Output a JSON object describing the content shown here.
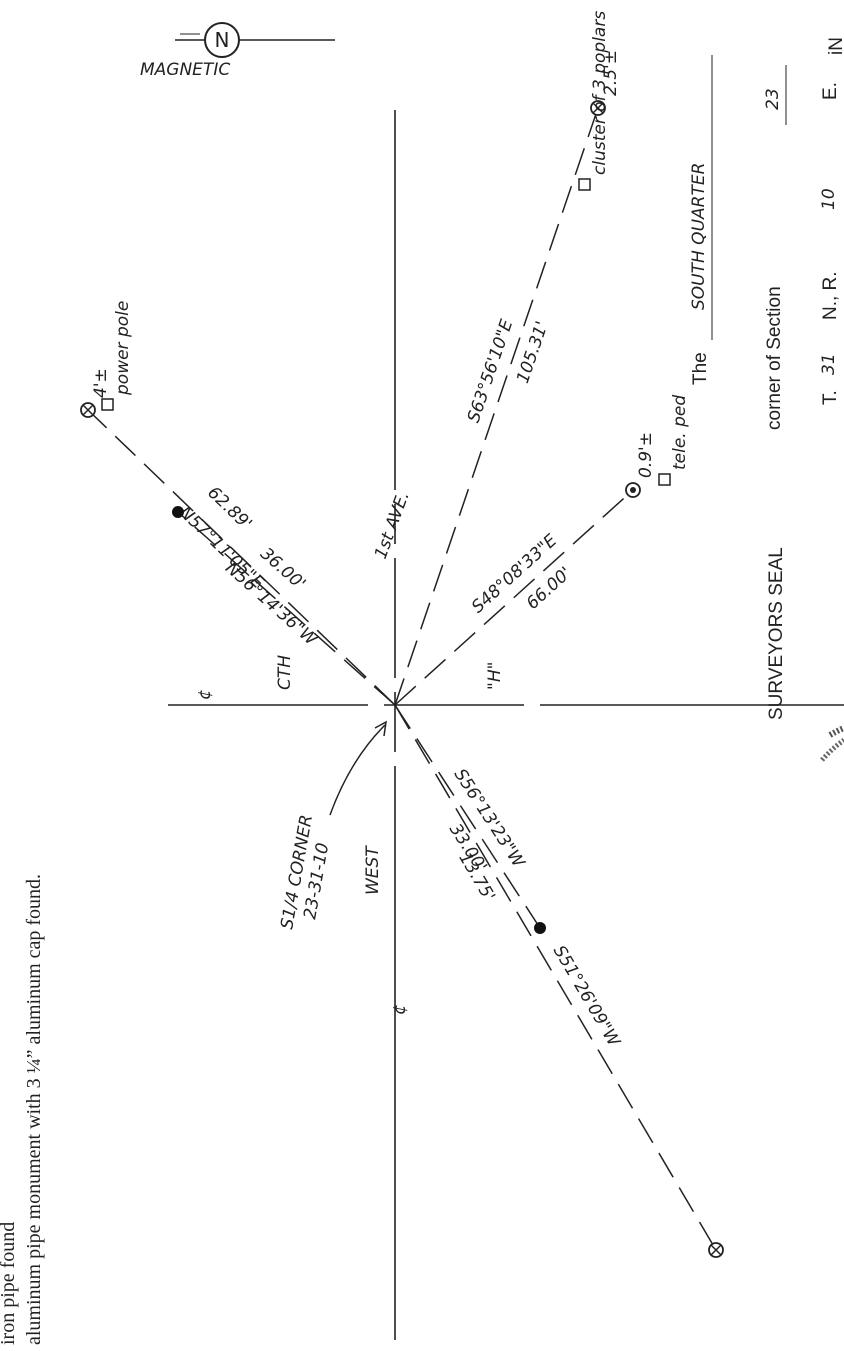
{
  "notes": [
    "iron pipe found",
    "aluminum pipe monument with 3 ¼” aluminum cap found."
  ],
  "compass": {
    "north": "N",
    "label": "MAGNETIC"
  },
  "streets": {
    "first_ave": "1st AVE.",
    "west": "WEST",
    "cth": "CTH",
    "h": "\"H\"",
    "centerline": "¢"
  },
  "corner": {
    "name": "S1/4 CORNER",
    "id": "23-31-10"
  },
  "ties": [
    {
      "bearing": "N57°11'05\"E",
      "distance": "62.89'",
      "offset": "4'±",
      "object": "power pole"
    },
    {
      "bearing": "S63°56'10\"E",
      "distance": "105.31'",
      "offset": "2.5'±",
      "object": "cluster of 3 poplars"
    },
    {
      "bearing": "S48°08'33\"E",
      "distance": "66.00'",
      "offset": "0.9'±",
      "object": "tele. ped"
    },
    {
      "bearing": "N56°14'36\"W",
      "distance": "36.00'"
    },
    {
      "bearing": "S56°13'23\"W",
      "distance": "33.00'"
    },
    {
      "bearing": "S51°26'09\"W",
      "distance": "13.75'"
    }
  ],
  "seal": "SURVEYORS SEAL",
  "certificate": {
    "the": "The",
    "quarter": "SOUTH QUARTER",
    "corner_of": "corner of Section",
    "section": "23",
    "t": "T.",
    "township": "31",
    "nr": "N., R.",
    "range": "10",
    "e": "E."
  },
  "corner_text": "iN"
}
